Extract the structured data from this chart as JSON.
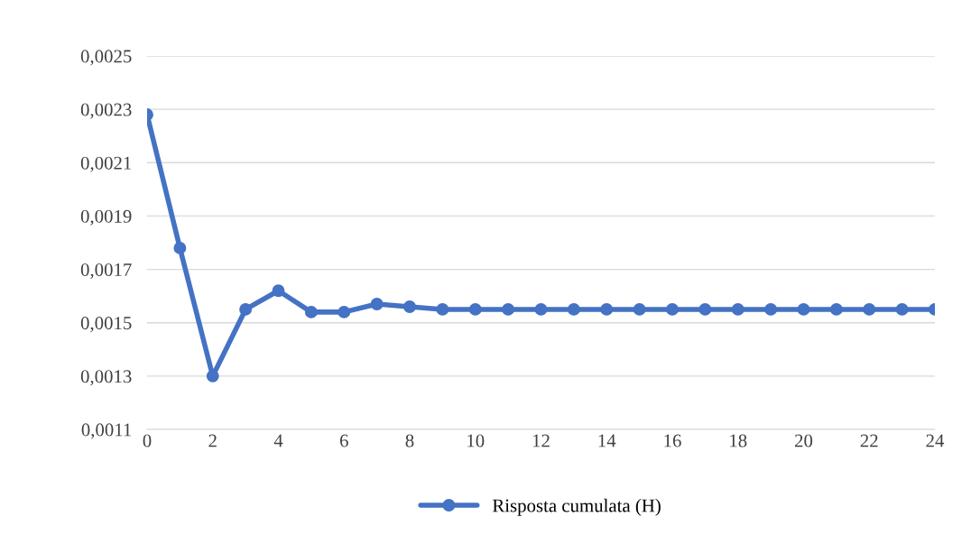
{
  "chart_data": {
    "type": "line",
    "x": [
      0,
      1,
      2,
      3,
      4,
      5,
      6,
      7,
      8,
      9,
      10,
      11,
      12,
      13,
      14,
      15,
      16,
      17,
      18,
      19,
      20,
      21,
      22,
      23,
      24
    ],
    "series": [
      {
        "name": "Risposta cumulata (H)",
        "color": "#4472c4",
        "values": [
          0.00228,
          0.00178,
          0.0013,
          0.00155,
          0.00162,
          0.00154,
          0.00154,
          0.00157,
          0.00156,
          0.00155,
          0.00155,
          0.00155,
          0.00155,
          0.00155,
          0.00155,
          0.00155,
          0.00155,
          0.00155,
          0.00155,
          0.00155,
          0.00155,
          0.00155,
          0.00155,
          0.00155,
          0.00155
        ]
      }
    ],
    "xlim": [
      0,
      24
    ],
    "xticks": [
      0,
      2,
      4,
      6,
      8,
      10,
      12,
      14,
      16,
      18,
      20,
      22,
      24
    ],
    "ylim": [
      0.0011,
      0.0025
    ],
    "yticks": [
      {
        "value": 0.0011,
        "label": "0,0011"
      },
      {
        "value": 0.0013,
        "label": "0,0013"
      },
      {
        "value": 0.0015,
        "label": "0,0015"
      },
      {
        "value": 0.0017,
        "label": "0,0017"
      },
      {
        "value": 0.0019,
        "label": "0,0019"
      },
      {
        "value": 0.0021,
        "label": "0,0021"
      },
      {
        "value": 0.0023,
        "label": "0,0023"
      },
      {
        "value": 0.0025,
        "label": "0,0025"
      }
    ],
    "grid": "y",
    "legend": "bottom",
    "marker": "circle",
    "line_style": "solid"
  }
}
